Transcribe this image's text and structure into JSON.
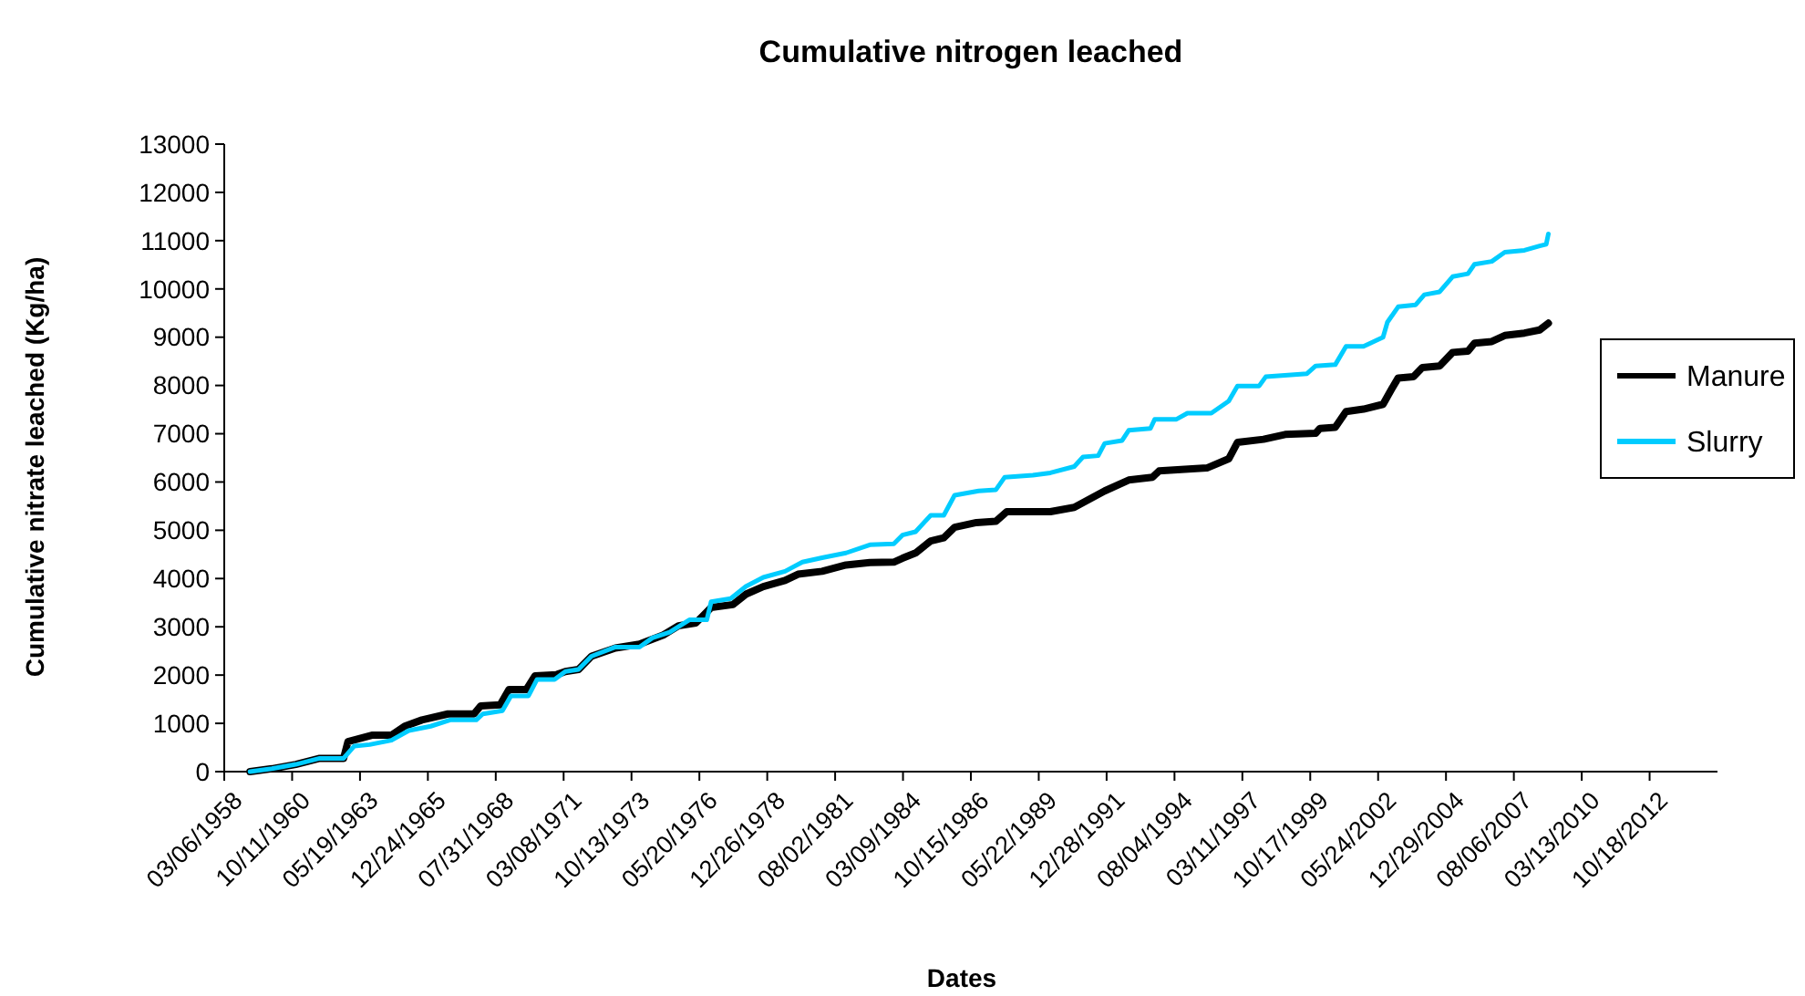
{
  "chart_data": {
    "type": "line",
    "title": "Cumulative nitrogen leached",
    "xlabel": "Dates",
    "ylabel": "Cumulative nitrate leached  (Kg/ha)",
    "legend": "right",
    "marker": "none",
    "line_style": "solid",
    "grid": false,
    "xlim": [
      "1958-03-06",
      "2015-05-26"
    ],
    "xticks": [
      {
        "value": "1958-03-06",
        "label": "03/06/1958"
      },
      {
        "value": "1960-10-11",
        "label": "10/11/1960"
      },
      {
        "value": "1963-05-19",
        "label": "05/19/1963"
      },
      {
        "value": "1965-12-24",
        "label": "12/24/1965"
      },
      {
        "value": "1968-07-31",
        "label": "07/31/1968"
      },
      {
        "value": "1971-03-08",
        "label": "03/08/1971"
      },
      {
        "value": "1973-10-13",
        "label": "10/13/1973"
      },
      {
        "value": "1976-05-20",
        "label": "05/20/1976"
      },
      {
        "value": "1978-12-26",
        "label": "12/26/1978"
      },
      {
        "value": "1981-08-02",
        "label": "08/02/1981"
      },
      {
        "value": "1984-03-09",
        "label": "03/09/1984"
      },
      {
        "value": "1986-10-15",
        "label": "10/15/1986"
      },
      {
        "value": "1989-05-22",
        "label": "05/22/1989"
      },
      {
        "value": "1991-12-28",
        "label": "12/28/1991"
      },
      {
        "value": "1994-08-04",
        "label": "08/04/1994"
      },
      {
        "value": "1997-03-11",
        "label": "03/11/1997"
      },
      {
        "value": "1999-10-17",
        "label": "10/17/1999"
      },
      {
        "value": "2002-05-24",
        "label": "05/24/2002"
      },
      {
        "value": "2004-12-29",
        "label": "12/29/2004"
      },
      {
        "value": "2007-08-06",
        "label": "08/06/2007"
      },
      {
        "value": "2010-03-13",
        "label": "03/13/2010"
      },
      {
        "value": "2012-10-18",
        "label": "10/18/2012"
      }
    ],
    "ylim": [
      0,
      13000
    ],
    "yticks": [
      0,
      1000,
      2000,
      3000,
      4000,
      5000,
      6000,
      7000,
      8000,
      9000,
      10000,
      11000,
      12000,
      13000
    ],
    "series": [
      {
        "name": "Manure",
        "color": "#000000",
        "x": [
          "1959-03",
          "1960-01",
          "1960-12",
          "1961-11",
          "1962-10",
          "1962-12",
          "1963-11",
          "1964-08",
          "1965-02",
          "1965-10",
          "1966-10",
          "1967-10",
          "1968-01",
          "1968-10",
          "1969-02",
          "1969-10",
          "1970-02",
          "1970-12",
          "1971-04",
          "1971-10",
          "1972-04",
          "1973-03",
          "1974-02",
          "1975-01",
          "1975-08",
          "1976-04",
          "1976-11",
          "1977-09",
          "1978-03",
          "1978-11",
          "1979-09",
          "1980-03",
          "1981-02",
          "1982-01",
          "1982-12",
          "1983-11",
          "1984-03",
          "1984-09",
          "1985-04",
          "1985-10",
          "1986-03",
          "1987-01",
          "1987-10",
          "1988-03",
          "1989-11",
          "1990-10",
          "1991-12",
          "1992-11",
          "1993-10",
          "1994-01",
          "1995-11",
          "1996-09",
          "1997-01",
          "1998-01",
          "1998-11",
          "2000-01",
          "2000-03",
          "2000-10",
          "2001-03",
          "2001-11",
          "2002-08",
          "2002-12",
          "2003-03",
          "2003-10",
          "2004-02",
          "2004-10",
          "2005-04",
          "2005-11",
          "2006-02",
          "2006-10",
          "2007-04",
          "2008-01",
          "2008-08",
          "2008-12"
        ],
        "values": [
          0,
          60,
          150,
          275,
          275,
          620,
          755,
          755,
          940,
          1070,
          1195,
          1195,
          1360,
          1385,
          1700,
          1700,
          1985,
          2010,
          2075,
          2115,
          2390,
          2560,
          2640,
          2830,
          3020,
          3080,
          3400,
          3460,
          3675,
          3835,
          3960,
          4090,
          4150,
          4280,
          4330,
          4340,
          4420,
          4530,
          4780,
          4845,
          5060,
          5160,
          5185,
          5385,
          5385,
          5475,
          5815,
          6040,
          6100,
          6230,
          6290,
          6480,
          6820,
          6885,
          6985,
          7010,
          7110,
          7135,
          7460,
          7510,
          7610,
          7930,
          8155,
          8180,
          8370,
          8405,
          8685,
          8710,
          8875,
          8910,
          9035,
          9085,
          9150,
          9290
        ]
      },
      {
        "name": "Slurry",
        "color": "#00ccff",
        "x": [
          "1959-03",
          "1960-01",
          "1960-12",
          "1961-11",
          "1962-10",
          "1963-03",
          "1963-10",
          "1964-08",
          "1965-04",
          "1966-02",
          "1966-11",
          "1967-11",
          "1968-02",
          "1968-11",
          "1969-03",
          "1969-11",
          "1970-03",
          "1970-11",
          "1971-04",
          "1971-10",
          "1972-04",
          "1973-03",
          "1974-02",
          "1974-08",
          "1975-04",
          "1976-01",
          "1976-09",
          "1976-11",
          "1977-08",
          "1978-03",
          "1978-11",
          "1979-09",
          "1980-05",
          "1981-02",
          "1982-01",
          "1982-12",
          "1983-11",
          "1984-03",
          "1984-09",
          "1985-04",
          "1985-10",
          "1986-03",
          "1987-02",
          "1987-10",
          "1988-02",
          "1989-03",
          "1989-11",
          "1990-10",
          "1991-02",
          "1991-09",
          "1991-12",
          "1992-08",
          "1992-11",
          "1993-09",
          "1993-11",
          "1994-09",
          "1995-02",
          "1996-01",
          "1996-09",
          "1997-01",
          "1997-11",
          "1998-02",
          "1999-09",
          "2000-01",
          "2000-10",
          "2001-03",
          "2001-11",
          "2002-08",
          "2002-10",
          "2003-03",
          "2003-11",
          "2004-03",
          "2004-10",
          "2005-04",
          "2005-11",
          "2006-02",
          "2006-10",
          "2007-04",
          "2008-01",
          "2008-08",
          "2008-11",
          "2008-12"
        ],
        "values": [
          0,
          60,
          150,
          275,
          275,
          530,
          560,
          650,
          850,
          940,
          1070,
          1070,
          1195,
          1260,
          1570,
          1570,
          1910,
          1910,
          2075,
          2115,
          2390,
          2580,
          2580,
          2770,
          2890,
          3145,
          3145,
          3520,
          3585,
          3835,
          4025,
          4150,
          4340,
          4430,
          4530,
          4700,
          4720,
          4900,
          4970,
          5310,
          5310,
          5725,
          5815,
          5840,
          6100,
          6140,
          6190,
          6320,
          6520,
          6545,
          6800,
          6860,
          7070,
          7110,
          7300,
          7300,
          7425,
          7425,
          7675,
          7990,
          7990,
          8180,
          8245,
          8405,
          8430,
          8810,
          8810,
          9000,
          9310,
          9630,
          9670,
          9880,
          9940,
          10255,
          10315,
          10510,
          10570,
          10760,
          10800,
          10890,
          10925,
          11140
        ]
      }
    ]
  }
}
